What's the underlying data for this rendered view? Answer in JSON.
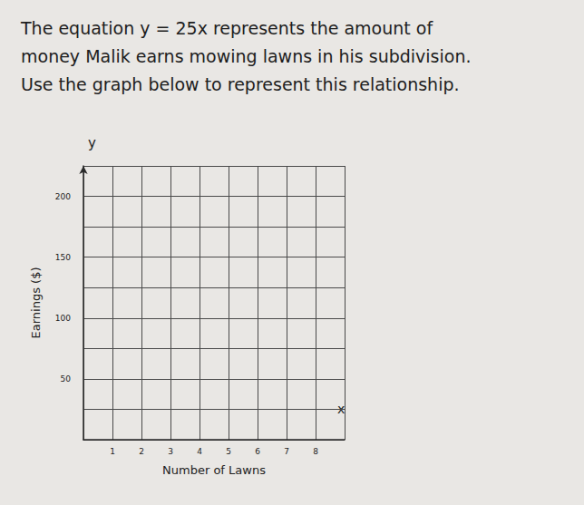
{
  "chart_data": {
    "type": "line",
    "title": [
      "The equation y = 25x represents the amount of",
      "money Malik earns mowing lawns in his subdivision.",
      "Use the graph below to represent this relationship."
    ],
    "x_label": "Number of Lawns",
    "y_label": "Earnings ($)",
    "x_symbol": "x",
    "y_symbol": "y",
    "series": [],
    "xlim": [
      0,
      9
    ],
    "xticks": [
      1,
      2,
      3,
      4,
      5,
      6,
      7,
      8
    ],
    "ylim": [
      0,
      225
    ],
    "yticks": [
      50,
      100,
      150,
      200
    ],
    "grid": true
  }
}
